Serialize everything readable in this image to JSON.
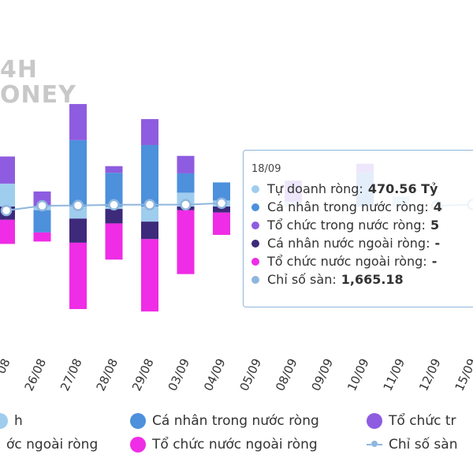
{
  "watermark": {
    "line1": "4H",
    "line2": "ONEY"
  },
  "colors": {
    "tu_doanh": "#9fcdee",
    "ca_nhan_trong_nuoc": "#4d90dc",
    "to_chuc_trong_nuoc": "#8e5ce0",
    "ca_nhan_nuoc_ngoai": "#3d2a7a",
    "to_chuc_nuoc_ngoai": "#ef2ce6",
    "chi_so": "#8fb6dd"
  },
  "legend": {
    "items": [
      {
        "label": "h",
        "color": "#9fcdee",
        "kind": "dot"
      },
      {
        "label": "Cá nhân trong nước ròng",
        "color": "#4d90dc",
        "kind": "dot"
      },
      {
        "label": "Tổ chức tr",
        "color": "#8e5ce0",
        "kind": "dot"
      },
      {
        "label": "ớc ngoài ròng",
        "color": "#3d2a7a",
        "kind": "dot"
      },
      {
        "label": "Tổ chức nước ngoài ròng",
        "color": "#ef2ce6",
        "kind": "dot"
      },
      {
        "label": "Chỉ số sàn",
        "color": "#8fb6dd",
        "kind": "line"
      }
    ]
  },
  "tooltip": {
    "date": "18/09",
    "rows": [
      {
        "label": "Tự doanh ròng:",
        "value": "470.56 Tỷ",
        "color": "#9fcdee"
      },
      {
        "label": "Cá nhân trong nước ròng:",
        "value": "4",
        "color": "#4d90dc"
      },
      {
        "label": "Tổ chức trong nước ròng:",
        "value": "5",
        "color": "#8e5ce0"
      },
      {
        "label": "Cá nhân nước ngoài ròng:",
        "value": "-",
        "color": "#3d2a7a"
      },
      {
        "label": "Tổ chức nước ngoài ròng:",
        "value": "-",
        "color": "#ef2ce6"
      },
      {
        "label": "Chỉ số sàn:",
        "value": "1,665.18",
        "color": "#8fb6dd"
      }
    ]
  },
  "chart_data": {
    "type": "bar",
    "stacked": true,
    "categories": [
      "08",
      "26/08",
      "27/08",
      "28/08",
      "29/08",
      "03/09",
      "04/09",
      "05/09",
      "08/09",
      "09/09",
      "10/09",
      "11/09",
      "12/09",
      "15/09"
    ],
    "series": [
      {
        "name": "Tự doanh ròng",
        "key": "tu_doanh",
        "values": [
          380,
          -60,
          -200,
          -40,
          -250,
          230,
          100,
          0,
          80,
          0,
          0,
          170,
          0,
          0
        ]
      },
      {
        "name": "Cá nhân trong nước ròng",
        "key": "ca_nhan_trong_nuoc",
        "values": [
          0,
          -370,
          1100,
          560,
          1020,
          320,
          300,
          0,
          0,
          0,
          560,
          0,
          0,
          0
        ]
      },
      {
        "name": "Tổ chức trong nước ròng",
        "key": "to_chuc_trong_nuoc",
        "values": [
          450,
          250,
          600,
          110,
          430,
          290,
          0,
          0,
          350,
          0,
          150,
          0,
          0,
          0
        ]
      },
      {
        "name": "Cá nhân nước ngoài ròng",
        "key": "ca_nhan_nuoc_ngoai",
        "values": [
          -220,
          0,
          -400,
          -240,
          -290,
          -60,
          -100,
          0,
          0,
          0,
          0,
          0,
          0,
          0
        ]
      },
      {
        "name": "Tổ chức nước ngoài ròng",
        "key": "to_chuc_nuoc_ngoai",
        "values": [
          -400,
          -150,
          -1100,
          -600,
          -1200,
          -1060,
          -370,
          0,
          0,
          0,
          0,
          0,
          0,
          0
        ]
      }
    ],
    "line": {
      "name": "Chỉ số sàn",
      "x": [
        "08",
        "26/08",
        "27/08",
        "28/08",
        "29/08",
        "03/09",
        "04/09",
        "05/09",
        "08/09",
        "09/09",
        "10/09",
        "11/09",
        "12/09",
        "15/09"
      ],
      "values": [
        1640,
        1670,
        1672,
        1676,
        1677,
        1677,
        1686,
        null,
        null,
        null,
        null,
        null,
        1670,
        1677
      ]
    },
    "legend_position": "bottom",
    "grid": false
  }
}
